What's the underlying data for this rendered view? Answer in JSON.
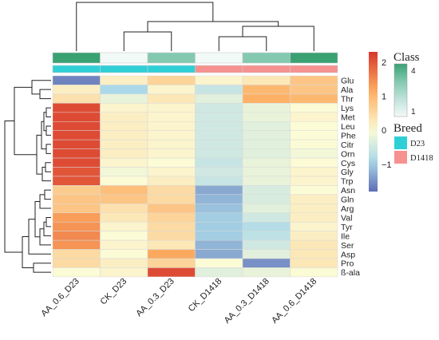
{
  "chart_data": {
    "type": "heatmap",
    "columns": [
      "AA_0.6_D23",
      "CK_D23",
      "AA_0.3_D23",
      "CK_D1418",
      "AA_0.3_D1418",
      "AA_0.6_D1418"
    ],
    "rows": [
      "Glu",
      "Ala",
      "Thr",
      "Lys",
      "Met",
      "Leu",
      "Phe",
      "Citr",
      "Orn",
      "Cys",
      "Gly",
      "Trp",
      "Asn",
      "Gln",
      "Arg",
      "Val",
      "Tyr",
      "Ile",
      "Ser",
      "Asp",
      "Pro",
      "ß-ala"
    ],
    "values": [
      [
        -1.6,
        0.2,
        0.6,
        0.1,
        0.3,
        0.8
      ],
      [
        0.2,
        -0.9,
        0.1,
        -0.6,
        1.0,
        0.8
      ],
      [
        0.4,
        -0.2,
        0.3,
        -0.3,
        1.1,
        1.0
      ],
      [
        2.1,
        0.1,
        0.1,
        -0.5,
        -0.2,
        0.0
      ],
      [
        2.1,
        0.2,
        0.1,
        -0.5,
        -0.2,
        0.1
      ],
      [
        2.1,
        0.2,
        0.1,
        -0.5,
        -0.3,
        0.0
      ],
      [
        2.1,
        0.2,
        0.1,
        -0.5,
        -0.3,
        0.0
      ],
      [
        2.1,
        0.2,
        0.1,
        -0.5,
        -0.3,
        0.0
      ],
      [
        2.1,
        0.2,
        0.1,
        -0.5,
        -0.3,
        -0.1
      ],
      [
        2.1,
        0.1,
        0.0,
        -0.6,
        -0.2,
        0.0
      ],
      [
        2.0,
        -0.1,
        0.1,
        -0.5,
        -0.2,
        0.1
      ],
      [
        2.0,
        0.0,
        0.2,
        -0.6,
        -0.2,
        0.1
      ],
      [
        0.7,
        0.9,
        0.5,
        -1.3,
        -0.4,
        0.0
      ],
      [
        0.8,
        0.8,
        0.5,
        -1.2,
        -0.4,
        0.2
      ],
      [
        0.8,
        0.4,
        0.8,
        -1.1,
        -0.3,
        0.2
      ],
      [
        1.3,
        0.3,
        0.6,
        -1.0,
        -0.5,
        0.2
      ],
      [
        1.4,
        0.1,
        0.5,
        -1.0,
        -0.8,
        0.1
      ],
      [
        1.5,
        0.0,
        0.5,
        -1.0,
        -0.7,
        0.2
      ],
      [
        1.4,
        0.1,
        0.3,
        -1.2,
        -0.5,
        0.3
      ],
      [
        0.5,
        0.0,
        1.2,
        -1.3,
        -0.3,
        0.3
      ],
      [
        0.5,
        0.2,
        0.6,
        0.0,
        -1.5,
        0.3
      ],
      [
        0.0,
        0.1,
        2.1,
        -0.3,
        -0.2,
        0.0
      ]
    ],
    "colorbar": {
      "ticks": [
        2,
        1,
        0,
        -1
      ],
      "min": -1.8,
      "max": 2.3
    },
    "annotation_tracks": {
      "class": {
        "title": "Class",
        "values": [
          4,
          1,
          3,
          1,
          3,
          4
        ],
        "legend_ticks": [
          "4",
          "",
          "1"
        ]
      },
      "breed": {
        "title": "Breed",
        "values": [
          "D23",
          "D23",
          "D23",
          "D1418",
          "D1418",
          "D1418"
        ],
        "legend": [
          "D23",
          "D1418"
        ]
      }
    },
    "colors": {
      "low": "#5e6cb3",
      "mid": "#fbfbd6",
      "high": "#d7362b",
      "class_scale": [
        "#f2faf8",
        "#bfe2da",
        "#82c9b0",
        "#3aa173"
      ],
      "breed": {
        "D23": "#2fcfd6",
        "D1418": "#f5918e"
      }
    }
  }
}
